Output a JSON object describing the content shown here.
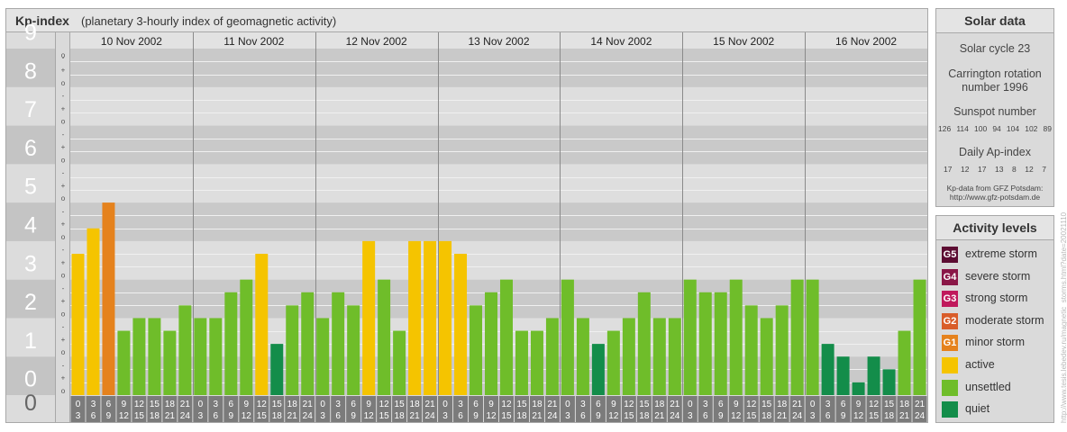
{
  "header": {
    "title": "Kp-index",
    "subtitle": "(planetary 3-hourly index of geomagnetic activity)"
  },
  "chart_data": {
    "type": "bar",
    "ylim": [
      0,
      9
    ],
    "y_ticks": [
      "0",
      "1",
      "2",
      "3",
      "4",
      "5",
      "6",
      "7",
      "8",
      "9"
    ],
    "minor_tick_pattern": [
      "o",
      "+",
      "-"
    ],
    "days": [
      "10 Nov 2002",
      "11 Nov 2002",
      "12 Nov 2002",
      "13 Nov 2002",
      "14 Nov 2002",
      "15 Nov 2002",
      "16 Nov 2002"
    ],
    "intervals": [
      [
        "0",
        "3"
      ],
      [
        "3",
        "6"
      ],
      [
        "6",
        "9"
      ],
      [
        "9",
        "12"
      ],
      [
        "12",
        "15"
      ],
      [
        "15",
        "18"
      ],
      [
        "18",
        "21"
      ],
      [
        "21",
        "24"
      ]
    ],
    "values": [
      [
        3.67,
        4.33,
        5.0,
        1.67,
        2.0,
        2.0,
        1.67,
        2.33
      ],
      [
        2.0,
        2.0,
        2.67,
        3.0,
        3.67,
        1.33,
        2.33,
        2.67
      ],
      [
        2.0,
        2.67,
        2.33,
        4.0,
        3.0,
        1.67,
        4.0,
        4.0
      ],
      [
        4.0,
        3.67,
        2.33,
        2.67,
        3.0,
        1.67,
        1.67,
        2.0
      ],
      [
        3.0,
        2.0,
        1.33,
        1.67,
        2.0,
        2.67,
        2.0,
        2.0
      ],
      [
        3.0,
        2.67,
        2.67,
        3.0,
        2.33,
        2.0,
        2.33,
        3.0
      ],
      [
        3.0,
        1.33,
        1.0,
        0.33,
        1.0,
        0.67,
        1.67,
        3.0
      ]
    ],
    "colors": {
      "quiet": "#138d4a",
      "unsettled": "#6fbd2a",
      "active": "#f5c400",
      "g1": "#e5821d",
      "g2": "#d95d2a",
      "g3": "#c0195c",
      "g4": "#8a1747",
      "g5": "#5c0c32"
    }
  },
  "solar": {
    "title": "Solar data",
    "cycle": "Solar cycle 23",
    "carrington_1": "Carrington rotation",
    "carrington_2": "number 1996",
    "sunspot_label": "Sunspot number",
    "sunspot_values": [
      "126",
      "114",
      "100",
      "94",
      "104",
      "102",
      "89"
    ],
    "ap_label": "Daily Ap-index",
    "ap_values": [
      "17",
      "12",
      "17",
      "13",
      "8",
      "12",
      "7"
    ],
    "source_1": "Kp-data from GFZ Potsdam:",
    "source_2": "http://www.gfz-potsdam.de"
  },
  "levels": {
    "title": "Activity levels",
    "items": [
      {
        "badge": "G5",
        "label": "extreme storm",
        "color": "#5c0c32"
      },
      {
        "badge": "G4",
        "label": "severe storm",
        "color": "#8a1747"
      },
      {
        "badge": "G3",
        "label": "strong storm",
        "color": "#c0195c"
      },
      {
        "badge": "G2",
        "label": "moderate storm",
        "color": "#d95d2a"
      },
      {
        "badge": "G1",
        "label": "minor storm",
        "color": "#e5821d"
      },
      {
        "badge": "",
        "label": "active",
        "color": "#f5c400"
      },
      {
        "badge": "",
        "label": "unsettled",
        "color": "#6fbd2a"
      },
      {
        "badge": "",
        "label": "quiet",
        "color": "#138d4a"
      }
    ]
  },
  "credit": "http://www.tesis.lebedev.ru/magnetic_storms.html?date=20021110"
}
